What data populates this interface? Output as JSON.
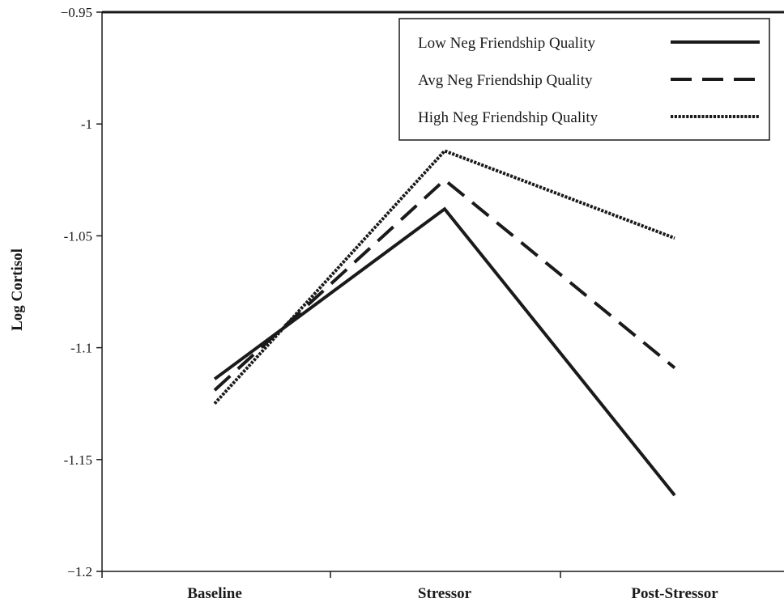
{
  "chart_data": {
    "type": "line",
    "title": "",
    "xlabel": "",
    "ylabel": "Log Cortisol",
    "categories": [
      "Baseline",
      "Stressor",
      "Post-Stressor"
    ],
    "ylim": [
      -1.2,
      -0.95
    ],
    "yticks": [
      -0.95,
      -1,
      -1.05,
      -1.1,
      -1.15,
      -1.2
    ],
    "ytick_labels": [
      "−0.95",
      "-1",
      "-1.05",
      "-1.1",
      "-1.15",
      "−1.2"
    ],
    "grid": false,
    "legend_position": "top-right",
    "series": [
      {
        "name": "Low Neg Friendship Quality",
        "style": "solid",
        "values": [
          -1.114,
          -1.038,
          -1.166
        ]
      },
      {
        "name": "Avg Neg Friendship Quality",
        "style": "dashed",
        "values": [
          -1.119,
          -1.025,
          -1.109
        ]
      },
      {
        "name": "High Neg Friendship Quality",
        "style": "dotted",
        "values": [
          -1.125,
          -1.012,
          -1.051
        ]
      }
    ],
    "colors": {
      "line": "#1a1a1a",
      "axis": "#1a1a1a",
      "background": "#ffffff"
    }
  }
}
